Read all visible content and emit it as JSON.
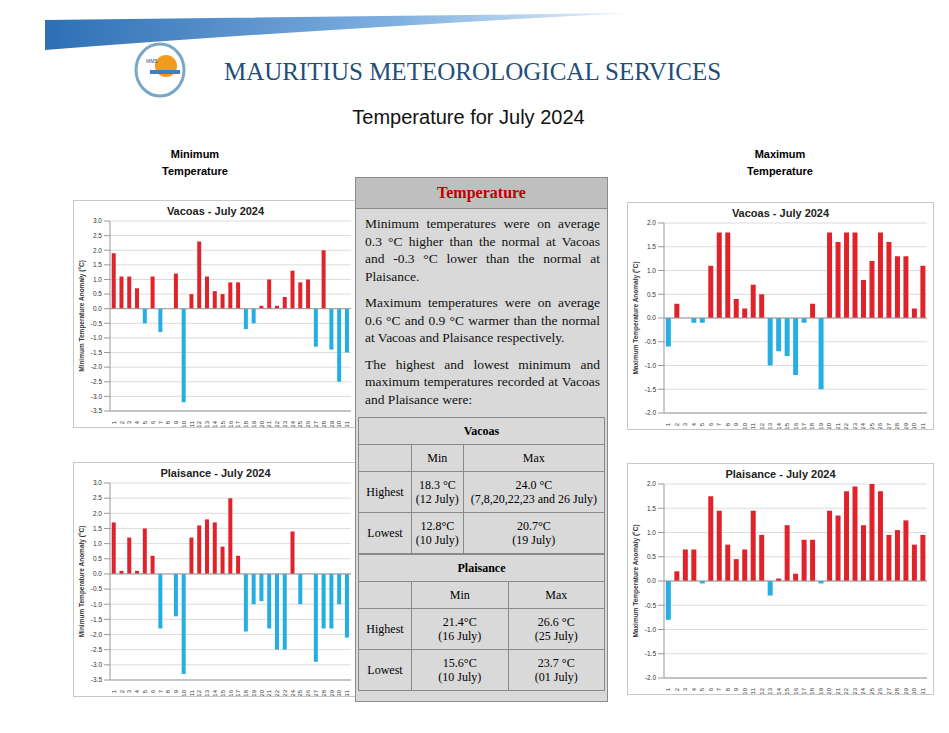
{
  "header": {
    "organisation": "MAURITIUS METEOROLOGICAL SERVICES",
    "logo_text": "MMS",
    "title": "Temperature for July 2024"
  },
  "headings": {
    "minimum": "Minimum Temperature",
    "maximum": "Maximum Temperature"
  },
  "panel": {
    "title": "Temperature",
    "paragraphs": [
      "Minimum temperatures were on average 0.3 °C higher than the normal at Vacoas and -0.3 °C lower than the normal at Plaisance.",
      "Maximum temperatures were on average 0.6 °C and 0.9 °C warmer than the normal at Vacoas and Plaisance respectively.",
      "The highest and lowest minimum and maximum temperatures recorded at Vacoas and Plaisance were:"
    ],
    "tables": [
      {
        "station": "Vacoas",
        "columns": [
          "Min",
          "Max"
        ],
        "rows": [
          {
            "label": "Highest",
            "cells": [
              [
                "18.3 °C",
                "(12 July)"
              ],
              [
                "24.0 °C",
                "(7,8,20,22,23 and 26 July)"
              ]
            ]
          },
          {
            "label": "Lowest",
            "cells": [
              [
                "12.8°C",
                "(10 July)"
              ],
              [
                "20.7°C",
                "(19 July)"
              ]
            ]
          }
        ]
      },
      {
        "station": "Plaisance",
        "columns": [
          "Min",
          "Max"
        ],
        "rows": [
          {
            "label": "Highest",
            "cells": [
              [
                "21.4°C",
                "(16 July)"
              ],
              [
                "26.6 °C",
                "(25 July)"
              ]
            ]
          },
          {
            "label": "Lowest",
            "cells": [
              [
                "15.6°C",
                "(10 July)"
              ],
              [
                "23.7 °C",
                "(01 July)"
              ]
            ]
          }
        ]
      }
    ]
  },
  "chart_data": [
    {
      "type": "bar",
      "title": "Vacoas - July 2024",
      "y_label": "Minimum Temperature Anomaly (°C)",
      "grid": true,
      "categories": [
        "1",
        "2",
        "3",
        "4",
        "5",
        "6",
        "7",
        "8",
        "9",
        "10",
        "11",
        "12",
        "13",
        "14",
        "15",
        "16",
        "17",
        "18",
        "19",
        "20",
        "21",
        "22",
        "23",
        "24",
        "25",
        "26",
        "27",
        "28",
        "29",
        "30",
        "31"
      ],
      "values": [
        1.9,
        1.1,
        1.1,
        0.7,
        -0.5,
        1.1,
        -0.8,
        0.0,
        1.2,
        -3.2,
        0.5,
        2.3,
        1.1,
        0.6,
        0.5,
        0.9,
        0.9,
        -0.7,
        -0.5,
        0.1,
        1.0,
        0.1,
        0.4,
        1.3,
        0.9,
        1.0,
        -1.3,
        2.0,
        -1.4,
        -2.5,
        -1.5
      ],
      "colors": [
        "#e0232b",
        "#e0232b",
        "#e0232b",
        "#e0232b",
        "#25aee2",
        "#e0232b",
        "#25aee2",
        "#e0232b",
        "#e0232b",
        "#25aee2",
        "#e0232b",
        "#e0232b",
        "#e0232b",
        "#e0232b",
        "#e0232b",
        "#e0232b",
        "#e0232b",
        "#25aee2",
        "#25aee2",
        "#e0232b",
        "#e0232b",
        "#e0232b",
        "#e0232b",
        "#e0232b",
        "#e0232b",
        "#e0232b",
        "#25aee2",
        "#e0232b",
        "#25aee2",
        "#25aee2",
        "#25aee2"
      ],
      "ylim": [
        -3.5,
        3.0
      ],
      "yticks": [
        -3.5,
        {
          "value": -3,
          "label": "-3.0"
        },
        -2.5,
        {
          "value": -2,
          "label": "-2.0"
        },
        -1.5,
        {
          "value": -1,
          "label": "-1.0"
        },
        -0.5,
        {
          "value": 0,
          "label": "0.0"
        },
        0.5,
        {
          "value": 1,
          "label": "1.0"
        },
        1.5,
        {
          "value": 2,
          "label": "2.0"
        },
        2.5,
        {
          "value": 3,
          "label": "3.0"
        }
      ]
    },
    {
      "type": "bar",
      "title": "Plaisance - July 2024",
      "y_label": "Minimum Temperature Anomaly (°C)",
      "grid": true,
      "categories": [
        "1",
        "2",
        "3",
        "4",
        "5",
        "6",
        "7",
        "8",
        "9",
        "10",
        "11",
        "12",
        "13",
        "14",
        "15",
        "16",
        "17",
        "18",
        "19",
        "20",
        "21",
        "22",
        "23",
        "24",
        "25",
        "26",
        "27",
        "28",
        "29",
        "30",
        "31"
      ],
      "values": [
        1.7,
        0.1,
        1.2,
        0.1,
        1.5,
        0.6,
        -1.8,
        0.0,
        -1.4,
        -3.3,
        1.2,
        1.6,
        1.8,
        1.7,
        0.9,
        2.5,
        0.6,
        -1.9,
        -1.0,
        -0.9,
        -1.8,
        -2.5,
        -2.5,
        1.4,
        -1.0,
        0.0,
        -2.9,
        -1.8,
        -1.8,
        -1.0,
        -2.1
      ],
      "colors": [
        "#e0232b",
        "#e0232b",
        "#e0232b",
        "#e0232b",
        "#e0232b",
        "#e0232b",
        "#25aee2",
        "#e0232b",
        "#25aee2",
        "#25aee2",
        "#e0232b",
        "#e0232b",
        "#e0232b",
        "#e0232b",
        "#e0232b",
        "#e0232b",
        "#e0232b",
        "#25aee2",
        "#25aee2",
        "#25aee2",
        "#25aee2",
        "#25aee2",
        "#25aee2",
        "#e0232b",
        "#25aee2",
        "#e0232b",
        "#25aee2",
        "#25aee2",
        "#25aee2",
        "#25aee2",
        "#25aee2"
      ],
      "ylim": [
        -3.5,
        3.0
      ],
      "yticks": [
        -3.5,
        {
          "value": -3,
          "label": "-3.0"
        },
        -2.5,
        {
          "value": -2,
          "label": "-2.0"
        },
        -1.5,
        {
          "value": -1,
          "label": "-1.0"
        },
        -0.5,
        {
          "value": 0,
          "label": "0.0"
        },
        0.5,
        {
          "value": 1,
          "label": "1.0"
        },
        1.5,
        {
          "value": 2,
          "label": "2.0"
        },
        2.5,
        {
          "value": 3,
          "label": "3.0"
        }
      ]
    },
    {
      "type": "bar",
      "title": "Vacoas - July 2024",
      "y_label": "Maximum Temperature Anomaly (°C)",
      "grid": true,
      "categories": [
        "1",
        "2",
        "3",
        "4",
        "5",
        "6",
        "7",
        "8",
        "9",
        "10",
        "11",
        "12",
        "13",
        "14",
        "15",
        "16",
        "17",
        "18",
        "19",
        "20",
        "21",
        "22",
        "23",
        "24",
        "25",
        "26",
        "27",
        "28",
        "29",
        "30",
        "31"
      ],
      "values": [
        -0.6,
        0.3,
        0.0,
        -0.1,
        -0.1,
        1.1,
        1.8,
        1.8,
        0.4,
        0.2,
        0.7,
        0.5,
        -1.0,
        -0.7,
        -0.8,
        -1.2,
        -0.1,
        0.3,
        -1.5,
        1.8,
        1.6,
        1.8,
        1.8,
        0.8,
        1.2,
        1.8,
        1.6,
        1.3,
        1.3,
        0.2,
        1.1
      ],
      "colors": [
        "#25aee2",
        "#e0232b",
        "#e0232b",
        "#25aee2",
        "#25aee2",
        "#e0232b",
        "#e0232b",
        "#e0232b",
        "#e0232b",
        "#e0232b",
        "#e0232b",
        "#e0232b",
        "#25aee2",
        "#25aee2",
        "#25aee2",
        "#25aee2",
        "#25aee2",
        "#e0232b",
        "#25aee2",
        "#e0232b",
        "#e0232b",
        "#e0232b",
        "#e0232b",
        "#e0232b",
        "#e0232b",
        "#e0232b",
        "#e0232b",
        "#e0232b",
        "#e0232b",
        "#e0232b",
        "#e0232b"
      ],
      "ylim": [
        -2.0,
        2.0
      ],
      "yticks": [
        {
          "value": -2,
          "label": "-2.0"
        },
        -1.5,
        {
          "value": -1,
          "label": "-1.0"
        },
        -0.5,
        {
          "value": 0,
          "label": "0.0"
        },
        0.5,
        {
          "value": 1,
          "label": "1.0"
        },
        1.5,
        {
          "value": 2,
          "label": "2.0"
        }
      ]
    },
    {
      "type": "bar",
      "title": "Plaisance - July 2024",
      "y_label": "Maximum Temperature Anomaly (°C)",
      "grid": true,
      "categories": [
        "1",
        "2",
        "3",
        "4",
        "5",
        "6",
        "7",
        "8",
        "9",
        "10",
        "11",
        "12",
        "13",
        "14",
        "15",
        "16",
        "17",
        "18",
        "19",
        "20",
        "21",
        "22",
        "23",
        "24",
        "25",
        "26",
        "27",
        "28",
        "29",
        "30",
        "31"
      ],
      "values": [
        -0.8,
        0.2,
        0.65,
        0.65,
        -0.05,
        1.75,
        1.45,
        0.75,
        0.45,
        0.65,
        1.45,
        0.95,
        -0.3,
        0.05,
        1.15,
        0.15,
        0.85,
        0.85,
        -0.05,
        1.45,
        1.35,
        1.85,
        1.95,
        1.15,
        2.0,
        1.85,
        0.95,
        1.05,
        1.25,
        0.75,
        0.95
      ],
      "colors": [
        "#25aee2",
        "#e0232b",
        "#e0232b",
        "#e0232b",
        "#25aee2",
        "#e0232b",
        "#e0232b",
        "#e0232b",
        "#e0232b",
        "#e0232b",
        "#e0232b",
        "#e0232b",
        "#25aee2",
        "#e0232b",
        "#e0232b",
        "#e0232b",
        "#e0232b",
        "#e0232b",
        "#25aee2",
        "#e0232b",
        "#e0232b",
        "#e0232b",
        "#e0232b",
        "#e0232b",
        "#e0232b",
        "#e0232b",
        "#e0232b",
        "#e0232b",
        "#e0232b",
        "#e0232b",
        "#e0232b"
      ],
      "ylim": [
        -2.0,
        2.0
      ],
      "yticks": [
        {
          "value": -2,
          "label": "-2.0"
        },
        -1.5,
        {
          "value": -1,
          "label": "-1.0"
        },
        -0.5,
        {
          "value": 0,
          "label": "0.0"
        },
        0.5,
        {
          "value": 1,
          "label": "1.0"
        },
        1.5,
        {
          "value": 2,
          "label": "2.0"
        }
      ]
    }
  ]
}
